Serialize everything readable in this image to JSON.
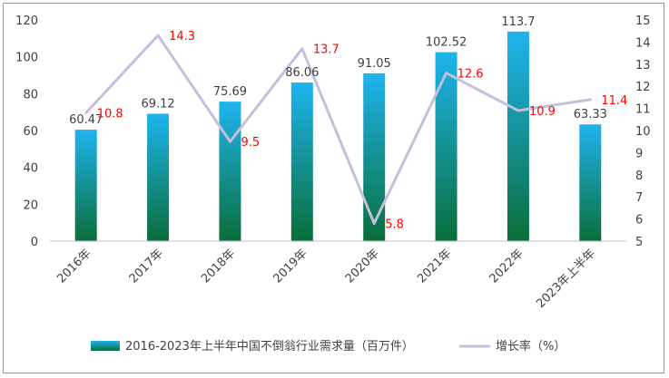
{
  "chart_data": {
    "type": "bar+line",
    "categories": [
      "2016年",
      "2017年",
      "2018年",
      "2019年",
      "2020年",
      "2021年",
      "2022年",
      "2023年上半年"
    ],
    "series": [
      {
        "name": "2016-2023年上半年中国不倒翁行业需求量（百万件）",
        "type": "bar",
        "axis": "left",
        "values": [
          60.47,
          69.12,
          75.69,
          86.06,
          91.05,
          102.52,
          113.7,
          63.33
        ],
        "labels": [
          "60.47",
          "69.12",
          "75.69",
          "86.06",
          "91.05",
          "102.52",
          "113.7",
          "63.33"
        ]
      },
      {
        "name": "增长率（%）",
        "type": "line",
        "axis": "right",
        "values": [
          10.8,
          14.3,
          9.5,
          13.7,
          5.8,
          12.6,
          10.9,
          11.4
        ],
        "labels": [
          "10.8",
          "14.3",
          "9.5",
          "13.7",
          "5.8",
          "12.6",
          "10.9",
          "11.4"
        ]
      }
    ],
    "y_left": {
      "min": 0,
      "max": 120,
      "step": 20,
      "ticks": [
        "0",
        "20",
        "40",
        "60",
        "80",
        "100",
        "120"
      ]
    },
    "y_right": {
      "min": 5,
      "max": 15,
      "step": 1,
      "ticks": [
        "5",
        "6",
        "7",
        "8",
        "9",
        "10",
        "11",
        "12",
        "13",
        "14",
        "15"
      ]
    },
    "colors": {
      "bar_top": "#1eb4ee",
      "bar_bottom": "#0a6e3a",
      "line": "#c5bfdc",
      "line_label": "#ff0000",
      "text": "#404040"
    },
    "legend_position": "bottom"
  }
}
